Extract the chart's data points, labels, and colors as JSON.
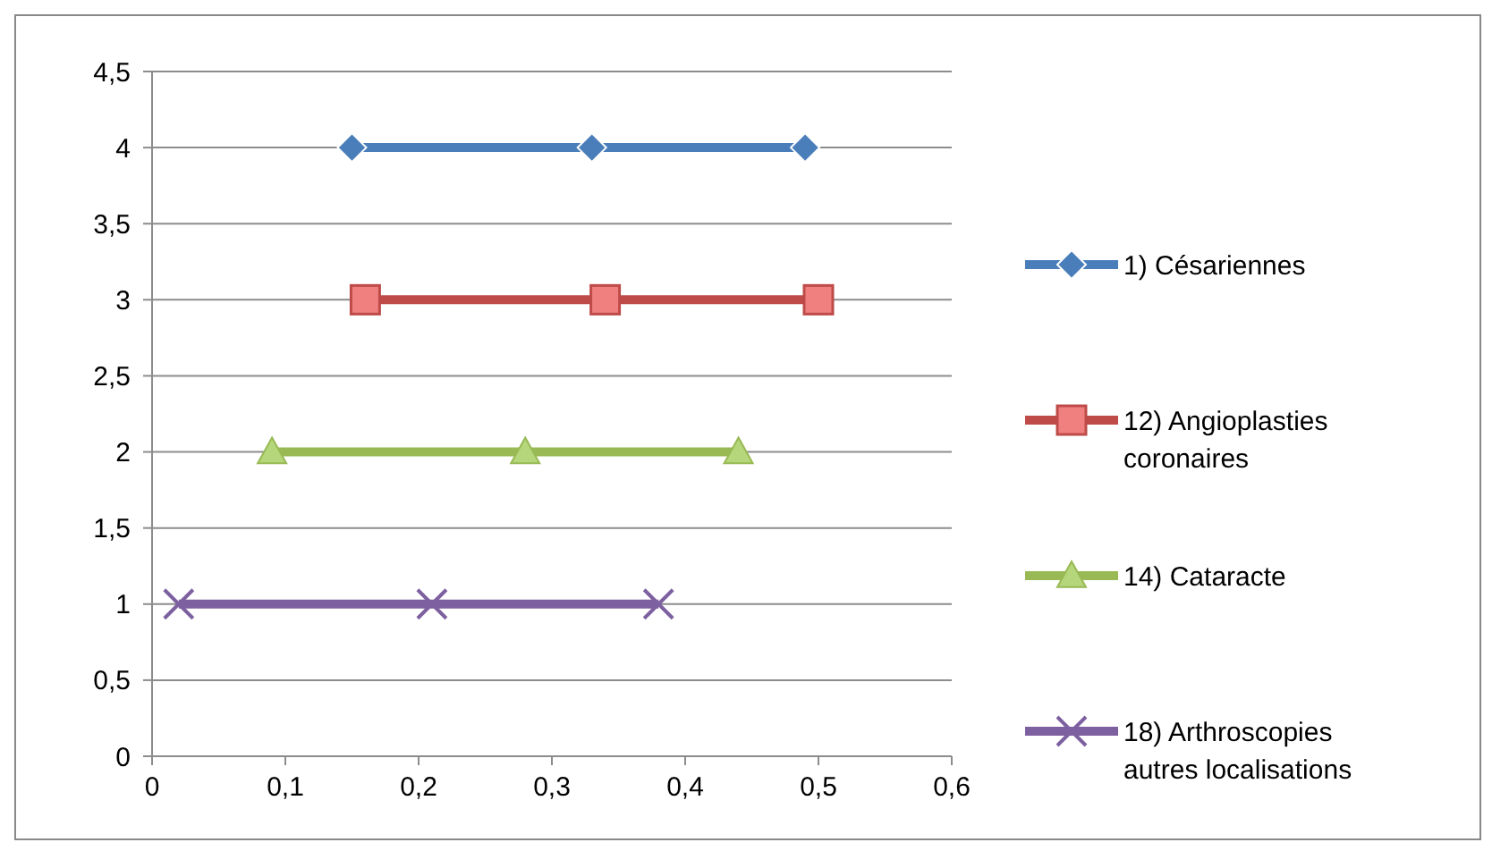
{
  "chart_data": {
    "type": "line",
    "xlim": [
      0,
      0.6
    ],
    "ylim": [
      0,
      4.5
    ],
    "xticks": [
      0,
      {
        "value": 0.1,
        "label": "0,1"
      },
      {
        "value": 0.2,
        "label": "0,2"
      },
      {
        "value": 0.3,
        "label": "0,3"
      },
      {
        "value": 0.4,
        "label": "0,4"
      },
      {
        "value": 0.5,
        "label": "0,5"
      },
      {
        "value": 0.6,
        "label": "0,6"
      }
    ],
    "yticks": [
      0,
      {
        "value": 0.5,
        "label": "0,5"
      },
      1,
      {
        "value": 1.5,
        "label": "1,5"
      },
      2,
      {
        "value": 2.5,
        "label": "2,5"
      },
      3,
      {
        "value": 3.5,
        "label": "3,5"
      },
      4,
      {
        "value": 4.5,
        "label": "4,5"
      }
    ],
    "grid": "y",
    "legend": "right",
    "line_style": "solid",
    "series": [
      {
        "name": "1) Césariennes",
        "color": "#4a7ebb",
        "marker": "diamond",
        "x": [
          0.15,
          0.33,
          0.49
        ],
        "values": [
          4,
          4,
          4
        ]
      },
      {
        "name": "12) Angioplasties coronaires",
        "color": "#be4b48",
        "marker": "square",
        "x": [
          0.16,
          0.34,
          0.5
        ],
        "values": [
          3,
          3,
          3
        ]
      },
      {
        "name": "14) Cataracte",
        "color": "#98b954",
        "marker": "triangle",
        "x": [
          0.09,
          0.28,
          0.44
        ],
        "values": [
          2,
          2,
          2
        ]
      },
      {
        "name": "18) Arthroscopies autres localisations",
        "color": "#7d60a0",
        "marker": "cross",
        "x": [
          0.02,
          0.21,
          0.38
        ],
        "values": [
          1,
          1,
          1
        ]
      }
    ]
  }
}
